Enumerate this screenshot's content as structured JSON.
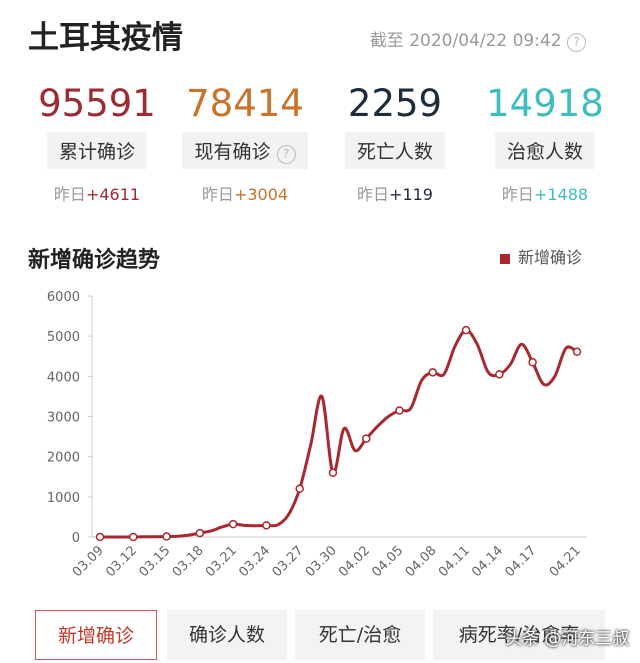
{
  "header": {
    "title": "土耳其疫情",
    "timestamp": "截至 2020/04/22 09:42"
  },
  "stats": [
    {
      "value": 95591,
      "label": "累计确诊",
      "prefix": "昨日",
      "change": "+4611"
    },
    {
      "value": 78414,
      "label": "现有确诊",
      "prefix": "昨日",
      "change": "+3004"
    },
    {
      "value": 2259,
      "label": "死亡人数",
      "prefix": "昨日",
      "change": "+119"
    },
    {
      "value": 14918,
      "label": "治愈人数",
      "prefix": "昨日",
      "change": "+1488"
    }
  ],
  "chart_data": {
    "type": "line",
    "title": "新增确诊趋势",
    "categories": [
      "03.09",
      null,
      null,
      "03.12",
      null,
      null,
      "03.15",
      null,
      null,
      "03.18",
      null,
      null,
      "03.21",
      null,
      null,
      "03.24",
      null,
      null,
      "03.27",
      null,
      null,
      "03.30",
      null,
      null,
      "04.02",
      null,
      null,
      "04.05",
      null,
      null,
      "04.08",
      null,
      null,
      "04.11",
      null,
      null,
      "04.14",
      null,
      null,
      "04.17",
      null,
      null,
      null,
      "04.21"
    ],
    "series": [
      {
        "name": "新增确诊",
        "color": "#a8282f",
        "values": [
          0,
          0,
          1,
          0,
          5,
          6,
          12,
          18,
          47,
          98,
          150,
          250,
          320,
          290,
          280,
          290,
          300,
          560,
          1200,
          2300,
          3500,
          1600,
          2700,
          2150,
          2450,
          2750,
          3000,
          3150,
          3200,
          3900,
          4100,
          4050,
          4750,
          5150,
          4800,
          4100,
          4050,
          4300,
          4800,
          4350,
          3800,
          4000,
          4700,
          4611
        ]
      }
    ],
    "ylim": [
      0,
      6000
    ],
    "yticks": [
      0,
      1000,
      2000,
      3000,
      4000,
      5000,
      6000
    ],
    "grid": false,
    "legend": "top-right"
  },
  "tabs": [
    "新增确诊",
    "确诊人数",
    "死亡/治愈",
    "病死率/治愈率"
  ],
  "watermark": "头条 @河东三叔"
}
